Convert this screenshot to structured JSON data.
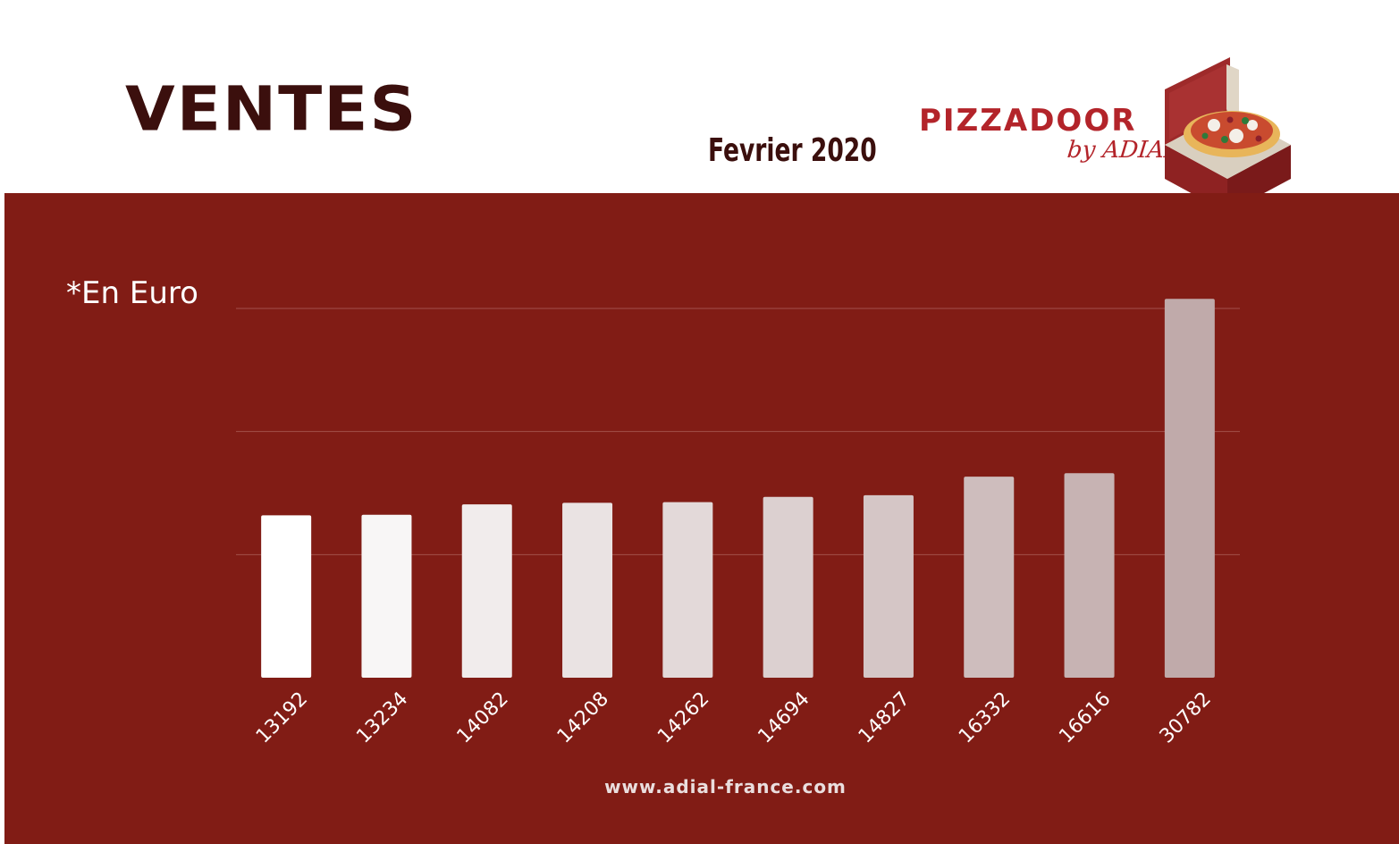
{
  "header": {
    "title": "VENTES",
    "subtitle": "Fevrier 2020"
  },
  "logo": {
    "wordmark": "PIZZADOOR",
    "byline": "by ADIAL",
    "icon": "pizza-box-icon"
  },
  "unit_note": "*En Euro",
  "footer": {
    "url": "www.adial-france.com"
  },
  "colors": {
    "panel": "#811c15",
    "title": "#3b0f0d",
    "brand": "#b3242a",
    "bar_first": "#ffffff",
    "bar_last": "#c0aaaa"
  },
  "chart_data": {
    "type": "bar",
    "categories": [
      "13192",
      "13234",
      "14082",
      "14208",
      "14262",
      "14694",
      "14827",
      "16332",
      "16616",
      "30782"
    ],
    "values": [
      13192,
      13234,
      14082,
      14208,
      14262,
      14694,
      14827,
      16332,
      16616,
      30782
    ],
    "title": "",
    "xlabel": "",
    "ylabel": "",
    "ylim": [
      0,
      30000
    ],
    "grid": true,
    "legend": "none"
  }
}
